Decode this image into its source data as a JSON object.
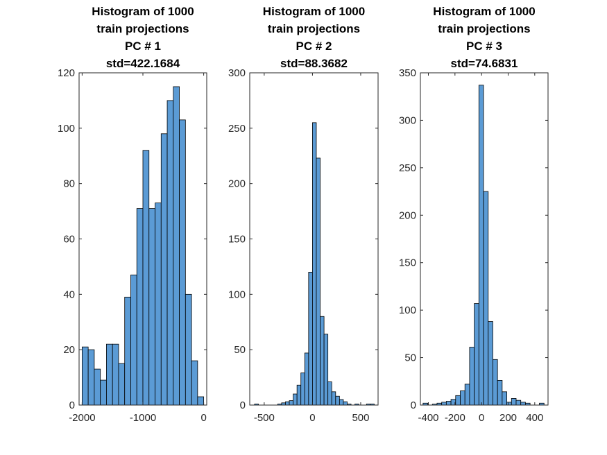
{
  "chart_data": [
    {
      "type": "bar",
      "title_lines": [
        "Histogram of 1000",
        "train projections",
        "PC # 1",
        "std=422.1684"
      ],
      "bar_color": "#5b9bd5",
      "xlim": [
        -2050,
        50
      ],
      "ylim": [
        0,
        120
      ],
      "xticks": [
        -2000,
        -1000,
        0
      ],
      "xtick_labels": [
        "-2000",
        "-1000",
        "0"
      ],
      "yticks": [
        0,
        20,
        40,
        60,
        80,
        100,
        120
      ],
      "ytick_labels": [
        "0",
        "20",
        "40",
        "60",
        "80",
        "100",
        "120"
      ],
      "bin_edges": [
        -2000,
        -1900,
        -1800,
        -1700,
        -1600,
        -1500,
        -1400,
        -1300,
        -1200,
        -1100,
        -1000,
        -900,
        -800,
        -700,
        -600,
        -500,
        -400,
        -300,
        -200,
        -100,
        0
      ],
      "values": [
        21,
        20,
        13,
        9,
        22,
        22,
        15,
        39,
        47,
        71,
        92,
        71,
        73,
        98,
        110,
        115,
        103,
        40,
        16,
        3
      ]
    },
    {
      "type": "bar",
      "title_lines": [
        "Histogram of 1000",
        "train projections",
        "PC # 2",
        "std=88.3682"
      ],
      "bar_color": "#5b9bd5",
      "xlim": [
        -650,
        680
      ],
      "ylim": [
        0,
        300
      ],
      "xticks": [
        -500,
        0,
        500
      ],
      "xtick_labels": [
        "-500",
        "0",
        "500"
      ],
      "yticks": [
        0,
        50,
        100,
        150,
        200,
        250,
        300
      ],
      "ytick_labels": [
        "0",
        "50",
        "100",
        "150",
        "200",
        "250",
        "300"
      ],
      "bin_edges": [
        -600,
        -560,
        -520,
        -480,
        -440,
        -400,
        -360,
        -320,
        -280,
        -240,
        -200,
        -160,
        -120,
        -80,
        -40,
        0,
        40,
        80,
        120,
        160,
        200,
        240,
        280,
        320,
        360,
        400,
        440,
        480,
        520,
        560,
        600,
        640
      ],
      "values": [
        1,
        0,
        0,
        0,
        0,
        0,
        1,
        2,
        3,
        4,
        10,
        18,
        29,
        47,
        120,
        255,
        223,
        80,
        64,
        21,
        12,
        8,
        5,
        3,
        1,
        0,
        1,
        0,
        0,
        1,
        1
      ]
    },
    {
      "type": "bar",
      "title_lines": [
        "Histogram of 1000",
        "train projections",
        "PC # 3",
        "std=74.6831"
      ],
      "bar_color": "#5b9bd5",
      "xlim": [
        -460,
        500
      ],
      "ylim": [
        0,
        350
      ],
      "xticks": [
        -400,
        -200,
        0,
        200,
        400
      ],
      "xtick_labels": [
        "-400",
        "-200",
        "0",
        "200",
        "400"
      ],
      "yticks": [
        0,
        50,
        100,
        150,
        200,
        250,
        300,
        350
      ],
      "ytick_labels": [
        "0",
        "50",
        "100",
        "150",
        "200",
        "250",
        "300",
        "350"
      ],
      "bin_edges": [
        -440,
        -405,
        -370,
        -335,
        -300,
        -265,
        -230,
        -195,
        -160,
        -125,
        -90,
        -55,
        -20,
        15,
        50,
        85,
        120,
        155,
        190,
        225,
        260,
        295,
        330,
        365,
        400,
        435,
        470
      ],
      "values": [
        2,
        0,
        1,
        2,
        3,
        4,
        6,
        10,
        15,
        22,
        61,
        107,
        337,
        225,
        88,
        48,
        26,
        14,
        3,
        7,
        5,
        3,
        2,
        0,
        0,
        2
      ]
    }
  ]
}
